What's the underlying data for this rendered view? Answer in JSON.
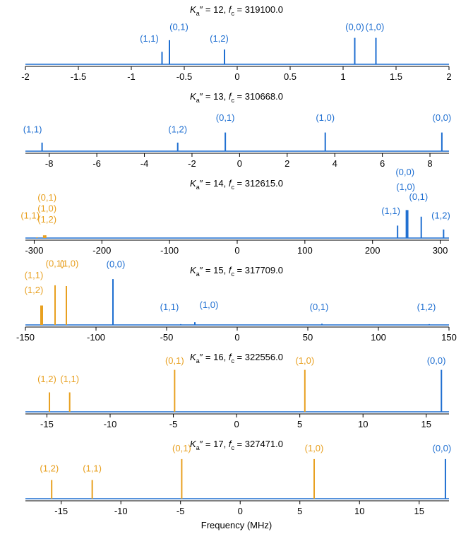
{
  "colors": {
    "blue": "#1f6fd1",
    "orange": "#e8a020",
    "axis": "#000000"
  },
  "xlabel": "Frequency (MHz)",
  "chart_data": [
    {
      "type": "stem",
      "title_ka": "12",
      "title_fc": "319100.0",
      "xlim": [
        -2.0,
        2.0
      ],
      "xticks": [
        -2,
        -1.5,
        -1,
        -0.5,
        0,
        0.5,
        1,
        1.5,
        2
      ],
      "xtick_labels": [
        "-2",
        "-1.5",
        "-1",
        "-0.5",
        "0",
        "0.5",
        "1",
        "1.5",
        "2"
      ],
      "lines": [
        {
          "x": -0.71,
          "h": 0.32,
          "color": "blue",
          "label": "(1,1)",
          "lx": -0.83,
          "ly": 0.58
        },
        {
          "x": -0.64,
          "h": 0.62,
          "color": "blue",
          "label": "(0,1)",
          "lx": -0.55,
          "ly": 0.88
        },
        {
          "x": -0.12,
          "h": 0.38,
          "color": "blue",
          "label": "(1,2)",
          "lx": -0.17,
          "ly": 0.58
        },
        {
          "x": 1.11,
          "h": 0.68,
          "color": "blue",
          "label": "(0,0)",
          "lx": 1.11,
          "ly": 0.88
        },
        {
          "x": 1.31,
          "h": 0.68,
          "color": "blue",
          "label": "(1,0)",
          "lx": 1.3,
          "ly": 0.88
        }
      ]
    },
    {
      "type": "stem",
      "title_ka": "13",
      "title_fc": "310668.0",
      "xlim": [
        -9.0,
        8.8
      ],
      "xticks": [
        -8,
        -6,
        -4,
        -2,
        0,
        2,
        4,
        6,
        8
      ],
      "xtick_labels": [
        "-8",
        "-6",
        "-4",
        "-2",
        "0",
        "2",
        "4",
        "6",
        "8"
      ],
      "lines": [
        {
          "x": -8.3,
          "h": 0.22,
          "color": "blue",
          "label": "(1,1)",
          "lx": -8.7,
          "ly": 0.48
        },
        {
          "x": -2.6,
          "h": 0.22,
          "color": "blue",
          "label": "(1,2)",
          "lx": -2.6,
          "ly": 0.48
        },
        {
          "x": -0.6,
          "h": 0.48,
          "color": "blue",
          "label": "(0,1)",
          "lx": -0.6,
          "ly": 0.78
        },
        {
          "x": 3.6,
          "h": 0.48,
          "color": "blue",
          "label": "(1,0)",
          "lx": 3.6,
          "ly": 0.78
        },
        {
          "x": 8.5,
          "h": 0.48,
          "color": "blue",
          "label": "(0,0)",
          "lx": 8.5,
          "ly": 0.78
        }
      ]
    },
    {
      "type": "stem",
      "title_ka": "14",
      "title_fc": "312615.0",
      "xlim": [
        -313,
        313
      ],
      "xticks": [
        -300,
        -200,
        -100,
        0,
        100,
        200,
        300
      ],
      "xtick_labels": [
        "-300",
        "-200",
        "-100",
        "0",
        "100",
        "200",
        "300"
      ],
      "lines": [
        {
          "x": -286,
          "h": 0.07,
          "color": "orange",
          "label": "(0,1)",
          "lx": -281,
          "ly": 0.96
        },
        {
          "x": -284,
          "h": 0.07,
          "color": "orange",
          "label": "(1,0)",
          "lx": -281,
          "ly": 0.68
        },
        {
          "x": -283,
          "h": 0.07,
          "color": "orange",
          "label": "(1,2)",
          "lx": -281,
          "ly": 0.4
        },
        {
          "x": -296,
          "h": 0.02,
          "color": "orange",
          "label": "(1,1)",
          "lx": -306,
          "ly": 0.5
        },
        {
          "x": 237,
          "h": 0.32,
          "color": "blue",
          "label": "(1,1)",
          "lx": 227,
          "ly": 0.62
        },
        {
          "x": 250,
          "h": 0.72,
          "color": "blue",
          "label": "(0,0)",
          "lx": 248,
          "ly": 1.62
        },
        {
          "x": 252,
          "h": 0.72,
          "color": "blue",
          "label": "(1,0)",
          "lx": 249,
          "ly": 1.24
        },
        {
          "x": 272,
          "h": 0.55,
          "color": "blue",
          "label": "(0,1)",
          "lx": 268,
          "ly": 0.98
        },
        {
          "x": 305,
          "h": 0.22,
          "color": "blue",
          "label": "(1,2)",
          "lx": 301,
          "ly": 0.5
        }
      ]
    },
    {
      "type": "stem",
      "title_ka": "15",
      "title_fc": "317709.0",
      "xlim": [
        -150,
        150
      ],
      "xticks": [
        -150,
        -100,
        -50,
        0,
        50,
        100,
        150
      ],
      "xtick_labels": [
        "-150",
        "-100",
        "-50",
        "0",
        "50",
        "100",
        "150"
      ],
      "lines": [
        {
          "x": -139,
          "h": 0.5,
          "color": "orange",
          "label": "(1,1)",
          "lx": -144,
          "ly": 1.2
        },
        {
          "x": -138,
          "h": 0.5,
          "color": "orange",
          "label": "(1,2)",
          "lx": -144,
          "ly": 0.82
        },
        {
          "x": -129,
          "h": 1.02,
          "color": "orange",
          "label": "(0,1)",
          "lx": -129,
          "ly": 1.5
        },
        {
          "x": -121,
          "h": 1.0,
          "color": "orange",
          "label": "(1,0)",
          "lx": -119,
          "ly": 1.5
        },
        {
          "x": -88,
          "h": 1.18,
          "color": "blue",
          "label": "(0,0)",
          "lx": -86,
          "ly": 1.48
        },
        {
          "x": -40,
          "h": 0.02,
          "color": "blue",
          "label": "(1,1)",
          "lx": -48,
          "ly": 0.38
        },
        {
          "x": -30,
          "h": 0.07,
          "color": "blue",
          "label": "(1,0)",
          "lx": -20,
          "ly": 0.44
        },
        {
          "x": 60,
          "h": 0.03,
          "color": "blue",
          "label": "(0,1)",
          "lx": 58,
          "ly": 0.38
        },
        {
          "x": 136,
          "h": 0.02,
          "color": "blue",
          "label": "(1,2)",
          "lx": 134,
          "ly": 0.38
        }
      ]
    },
    {
      "type": "stem",
      "title_ka": "16",
      "title_fc": "322556.0",
      "xlim": [
        -16.7,
        16.8
      ],
      "xticks": [
        -15,
        -10,
        -5,
        0,
        5,
        10,
        15
      ],
      "xtick_labels": [
        "-15",
        "-10",
        "-5",
        "0",
        "5",
        "10",
        "15"
      ],
      "lines": [
        {
          "x": -14.8,
          "h": 0.5,
          "color": "orange",
          "label": "(1,2)",
          "lx": -15.0,
          "ly": 0.76
        },
        {
          "x": -13.2,
          "h": 0.5,
          "color": "orange",
          "label": "(1,1)",
          "lx": -13.2,
          "ly": 0.76
        },
        {
          "x": -4.9,
          "h": 1.08,
          "color": "orange",
          "label": "(0,1)",
          "lx": -4.9,
          "ly": 1.24
        },
        {
          "x": 5.4,
          "h": 1.08,
          "color": "orange",
          "label": "(1,0)",
          "lx": 5.4,
          "ly": 1.24
        },
        {
          "x": 16.2,
          "h": 1.08,
          "color": "blue",
          "label": "(0,0)",
          "lx": 15.8,
          "ly": 1.24
        }
      ]
    },
    {
      "type": "stem",
      "title_ka": "17",
      "title_fc": "327471.0",
      "xlim": [
        -18.0,
        17.5
      ],
      "xticks": [
        -15,
        -10,
        -5,
        0,
        5,
        10,
        15
      ],
      "xtick_labels": [
        "-15",
        "-10",
        "-5",
        "0",
        "5",
        "10",
        "15"
      ],
      "lines": [
        {
          "x": -15.8,
          "h": 0.48,
          "color": "orange",
          "label": "(1,2)",
          "lx": -16.0,
          "ly": 0.7
        },
        {
          "x": -12.4,
          "h": 0.48,
          "color": "orange",
          "label": "(1,1)",
          "lx": -12.4,
          "ly": 0.7
        },
        {
          "x": -4.9,
          "h": 1.02,
          "color": "orange",
          "label": "(0,1)",
          "lx": -4.9,
          "ly": 1.22
        },
        {
          "x": 6.2,
          "h": 1.02,
          "color": "orange",
          "label": "(1,0)",
          "lx": 6.2,
          "ly": 1.22
        },
        {
          "x": 17.2,
          "h": 1.02,
          "color": "blue",
          "label": "(0,0)",
          "lx": 16.9,
          "ly": 1.22
        }
      ]
    }
  ]
}
